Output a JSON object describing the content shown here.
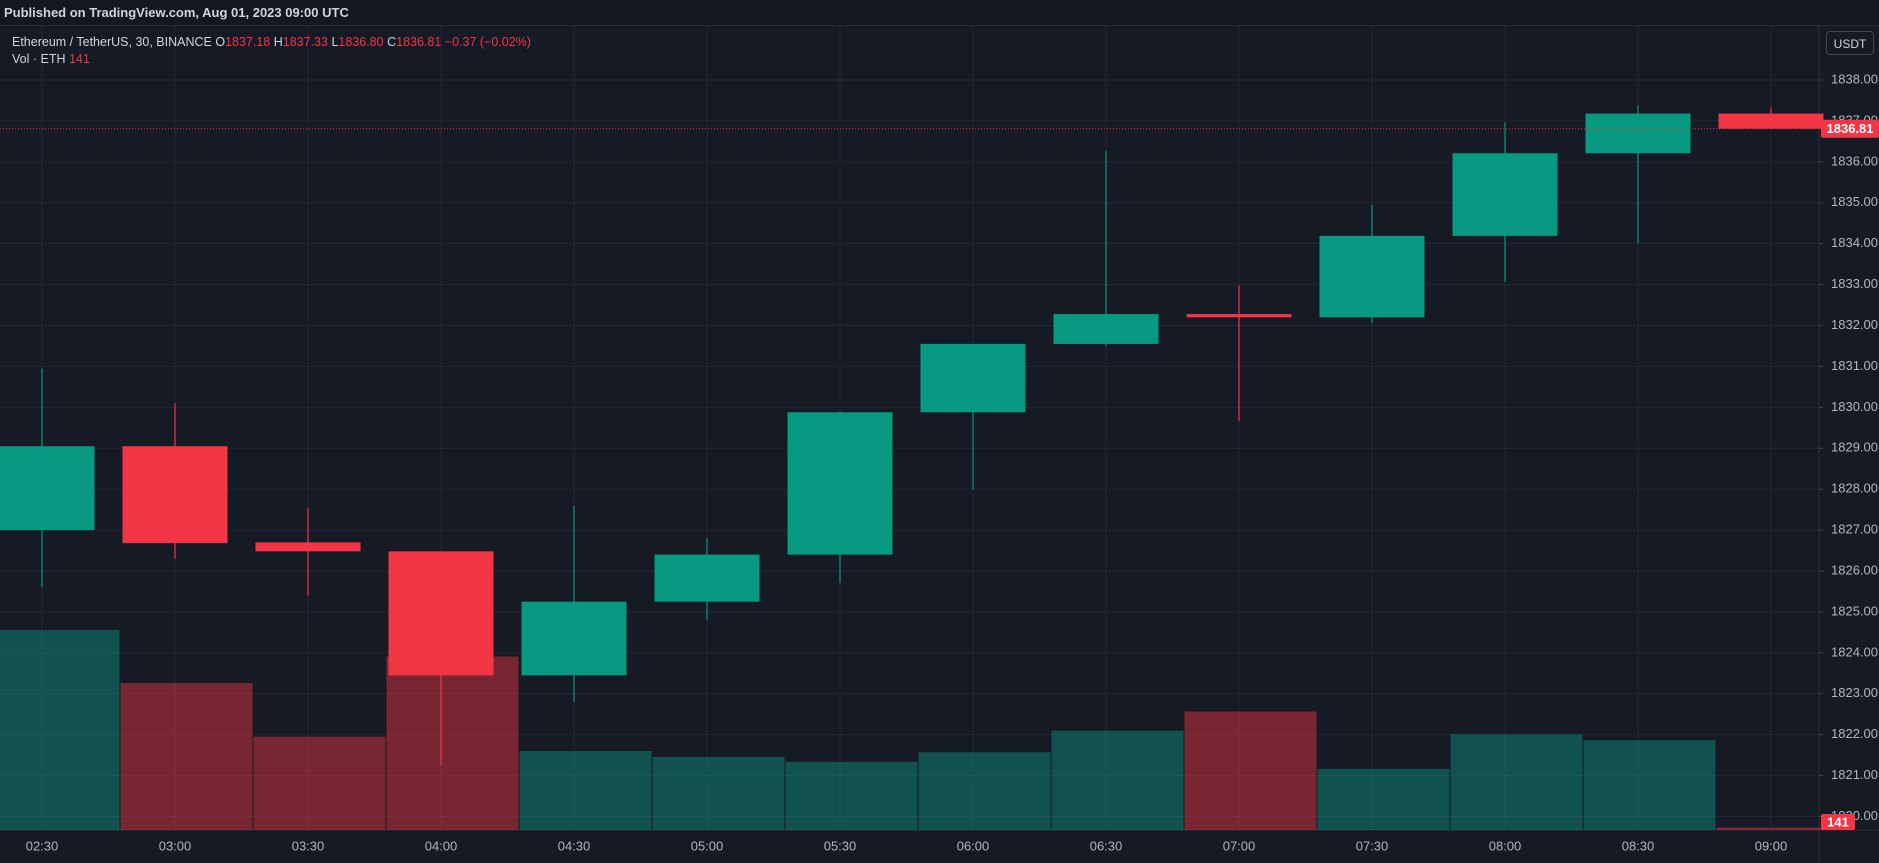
{
  "header": {
    "published": "Published on TradingView.com, Aug 01, 2023 09:00 UTC",
    "currency": "USDT"
  },
  "legend": {
    "symbol": "Ethereum / TetherUS, 30, BINANCE",
    "o_label": "O",
    "open": "1837.18",
    "h_label": "H",
    "high": "1837.33",
    "l_label": "L",
    "low": "1836.80",
    "c_label": "C",
    "close": "1836.81",
    "change": "−0.37 (−0.02%)",
    "volume_label": "Vol · ETH",
    "volume": "141"
  },
  "chart_data": {
    "type": "candlestick",
    "categories": [
      "02:30",
      "03:00",
      "03:30",
      "04:00",
      "04:30",
      "05:00",
      "05:30",
      "06:00",
      "06:30",
      "07:00",
      "07:30",
      "08:00",
      "08:30",
      "09:00"
    ],
    "open": [
      1827.0,
      1829.05,
      1826.7,
      1826.48,
      1823.45,
      1825.25,
      1826.4,
      1829.88,
      1831.55,
      1832.28,
      1832.2,
      1834.19,
      1836.21,
      1837.18
    ],
    "high": [
      1830.95,
      1830.1,
      1827.53,
      1826.48,
      1827.6,
      1826.8,
      1829.9,
      1831.55,
      1836.27,
      1832.98,
      1834.95,
      1836.97,
      1837.38,
      1837.33
    ],
    "low": [
      1825.6,
      1826.3,
      1825.4,
      1821.25,
      1822.8,
      1824.8,
      1825.7,
      1828.0,
      1831.5,
      1829.67,
      1832.05,
      1833.07,
      1834.01,
      1836.8
    ],
    "close": [
      1829.05,
      1826.68,
      1826.48,
      1823.45,
      1825.25,
      1826.4,
      1829.88,
      1831.55,
      1832.28,
      1832.2,
      1834.19,
      1836.21,
      1837.18,
      1836.81
    ],
    "volume": [
      11700,
      8600,
      5460,
      10150,
      4620,
      4270,
      3990,
      4550,
      5810,
      6930,
      3570,
      5600,
      5250,
      141
    ],
    "up_color": "#089981",
    "down_color": "#f23645",
    "ylim": [
      1819.67,
      1839.32
    ],
    "yticks": [
      {
        "value": 1820,
        "label": "1820.00"
      },
      {
        "value": 1821,
        "label": "1821.00"
      },
      {
        "value": 1822,
        "label": "1822.00"
      },
      {
        "value": 1823,
        "label": "1823.00"
      },
      {
        "value": 1824,
        "label": "1824.00"
      },
      {
        "value": 1825,
        "label": "1825.00"
      },
      {
        "value": 1826,
        "label": "1826.00"
      },
      {
        "value": 1827,
        "label": "1827.00"
      },
      {
        "value": 1828,
        "label": "1828.00"
      },
      {
        "value": 1829,
        "label": "1829.00"
      },
      {
        "value": 1830,
        "label": "1830.00"
      },
      {
        "value": 1831,
        "label": "1831.00"
      },
      {
        "value": 1832,
        "label": "1832.00"
      },
      {
        "value": 1833,
        "label": "1833.00"
      },
      {
        "value": 1834,
        "label": "1834.00"
      },
      {
        "value": 1835,
        "label": "1835.00"
      },
      {
        "value": 1836,
        "label": "1836.00"
      },
      {
        "value": 1837,
        "label": "1837.00"
      },
      {
        "value": 1838,
        "label": "1838.00"
      }
    ],
    "grid": true
  }
}
